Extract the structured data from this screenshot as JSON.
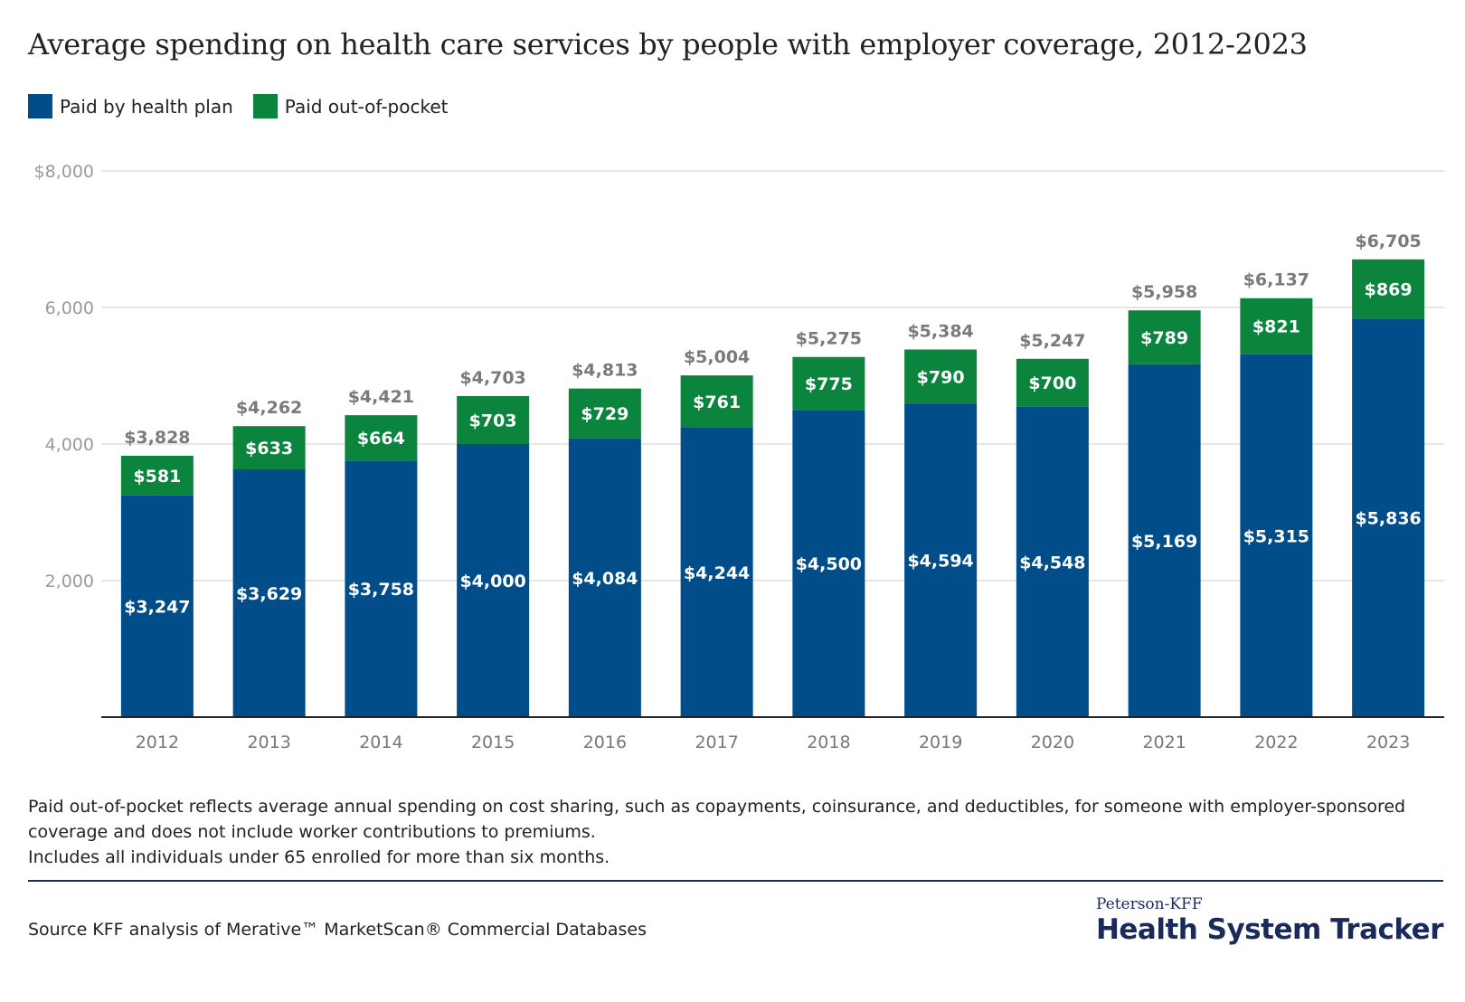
{
  "title": "Average spending on health care services by people with employer coverage, 2012-2023",
  "legend": [
    {
      "label": "Paid by health plan",
      "color": "#004d8a"
    },
    {
      "label": "Paid out-of-pocket",
      "color": "#0b843e"
    }
  ],
  "chart_data": {
    "type": "bar",
    "stacked": true,
    "categories": [
      "2012",
      "2013",
      "2014",
      "2015",
      "2016",
      "2017",
      "2018",
      "2019",
      "2020",
      "2021",
      "2022",
      "2023"
    ],
    "series": [
      {
        "name": "Paid by health plan",
        "color": "#004d8a",
        "values": [
          3247,
          3629,
          3758,
          4000,
          4084,
          4244,
          4500,
          4594,
          4548,
          5169,
          5315,
          5836
        ],
        "labels": [
          "$3,247",
          "$3,629",
          "$3,758",
          "$4,000",
          "$4,084",
          "$4,244",
          "$4,500",
          "$4,594",
          "$4,548",
          "$5,169",
          "$5,315",
          "$5,836"
        ]
      },
      {
        "name": "Paid out-of-pocket",
        "color": "#0b843e",
        "values": [
          581,
          633,
          664,
          703,
          729,
          761,
          775,
          790,
          700,
          789,
          821,
          869
        ],
        "labels": [
          "$581",
          "$633",
          "$664",
          "$703",
          "$729",
          "$761",
          "$775",
          "$790",
          "$700",
          "$789",
          "$821",
          "$869"
        ]
      }
    ],
    "totals": [
      3828,
      4262,
      4421,
      4703,
      4813,
      5004,
      5275,
      5384,
      5247,
      5958,
      6137,
      6705
    ],
    "total_labels": [
      "$3,828",
      "$4,262",
      "$4,421",
      "$4,703",
      "$4,813",
      "$5,004",
      "$5,275",
      "$5,384",
      "$5,247",
      "$5,958",
      "$6,137",
      "$6,705"
    ],
    "ylim": [
      0,
      8000
    ],
    "yticks": [
      2000,
      4000,
      6000,
      8000
    ],
    "ytick_labels": [
      "2,000",
      "4,000",
      "6,000",
      "$8,000"
    ],
    "grid": true,
    "legend_position": "top-left",
    "xlabel": "",
    "ylabel": ""
  },
  "notes": [
    "Paid out-of-pocket reflects average annual spending on cost sharing, such as copayments, coinsurance, and deductibles, for someone with employer-sponsored coverage and does not include worker contributions to premiums.",
    "Includes all individuals under 65 enrolled for more than six months."
  ],
  "source": "Source KFF analysis of Merative™ MarketScan® Commercial Databases",
  "brand": {
    "small": "Peterson-KFF",
    "big": "Health System Tracker"
  }
}
